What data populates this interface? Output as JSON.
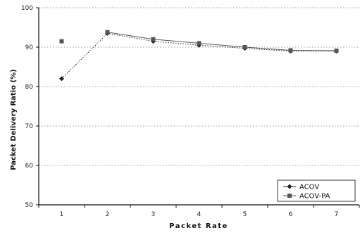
{
  "chart_data": {
    "type": "line",
    "title": "",
    "xlabel": "Packet Rate",
    "ylabel": "Packet Delivery Ratio (%)",
    "x": [
      1,
      2,
      3,
      4,
      5,
      6,
      7
    ],
    "xlim": [
      0.5,
      7.5
    ],
    "ylim": [
      50,
      100
    ],
    "yticks": [
      50,
      60,
      70,
      80,
      90,
      100
    ],
    "xticks": [
      1,
      2,
      3,
      4,
      5,
      6,
      7
    ],
    "grid": "horizontal dotted",
    "legend_position": "bottom-right",
    "series": [
      {
        "name": "ACOV",
        "marker": "diamond",
        "color": "#222222",
        "linestyle": "dotted",
        "values": [
          82,
          93.5,
          91.5,
          90.5,
          89.7,
          89,
          89
        ]
      },
      {
        "name": "ACOV-PA",
        "marker": "square",
        "color": "#555555",
        "linestyle": "solid",
        "values": [
          91.5,
          93.8,
          92,
          91,
          90,
          89.2,
          89.1
        ]
      }
    ]
  }
}
